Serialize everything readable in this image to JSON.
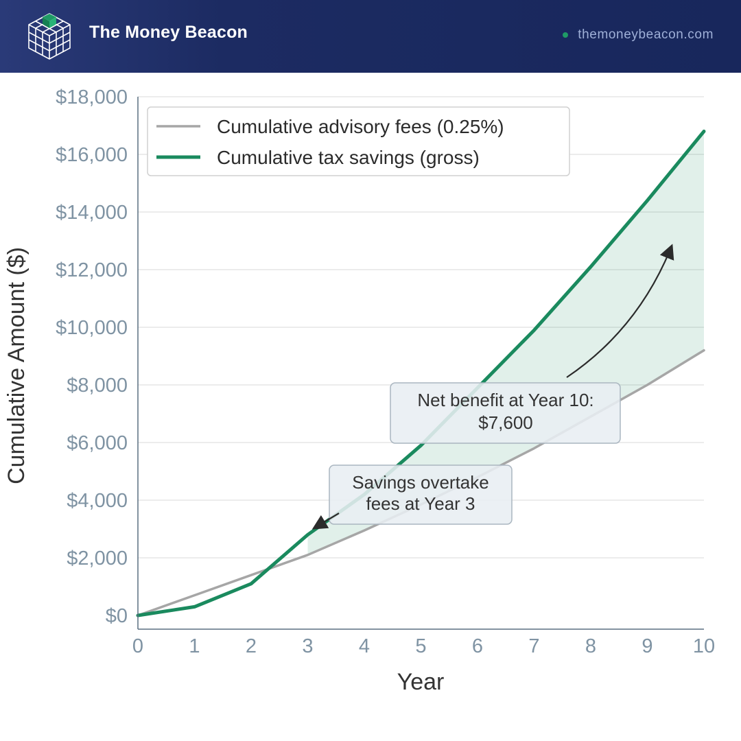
{
  "header": {
    "brand": "The Money Beacon",
    "website": "themoneybeacon.com",
    "logo_icon": "cube-grid-icon",
    "colors": {
      "background": "#1c2b62",
      "accent": "#1f9a66"
    }
  },
  "chart_data": {
    "type": "line",
    "x": [
      0,
      1,
      2,
      3,
      4,
      5,
      6,
      7,
      8,
      9,
      10
    ],
    "xlabel": "Year",
    "ylabel": "Cumulative Amount ($)",
    "xlim": [
      0,
      10
    ],
    "ylim": [
      0,
      18000
    ],
    "xticks": [
      "0",
      "1",
      "2",
      "3",
      "4",
      "5",
      "6",
      "7",
      "8",
      "9",
      "10"
    ],
    "yticks": [
      "$0",
      "$2,000",
      "$4,000",
      "$6,000",
      "$8,000",
      "$10,000",
      "$12,000",
      "$14,000",
      "$16,000",
      "$18,000"
    ],
    "grid": "horizontal",
    "legend_position": "top-left",
    "series": [
      {
        "name": "Cumulative advisory fees (0.25%)",
        "values": [
          0,
          700,
          1400,
          2100,
          2950,
          3850,
          4800,
          5800,
          6900,
          8000,
          9200
        ],
        "color": "#a6a6a6"
      },
      {
        "name": "Cumulative tax savings (gross)",
        "values": [
          0,
          300,
          1100,
          2800,
          4200,
          5900,
          7900,
          9900,
          12100,
          14400,
          16800
        ],
        "color": "#1a8a5e"
      }
    ],
    "fill_between": {
      "from_x": 3,
      "color": "#1a8a5e"
    },
    "annotations": [
      {
        "lines": [
          "Savings overtake",
          "fees at Year 3"
        ],
        "points_to": {
          "x": 3,
          "y": 2850
        }
      },
      {
        "lines": [
          "Net benefit at Year 10:",
          "$7,600"
        ],
        "points_to": {
          "x": 9.45,
          "y": 12800
        }
      }
    ]
  }
}
